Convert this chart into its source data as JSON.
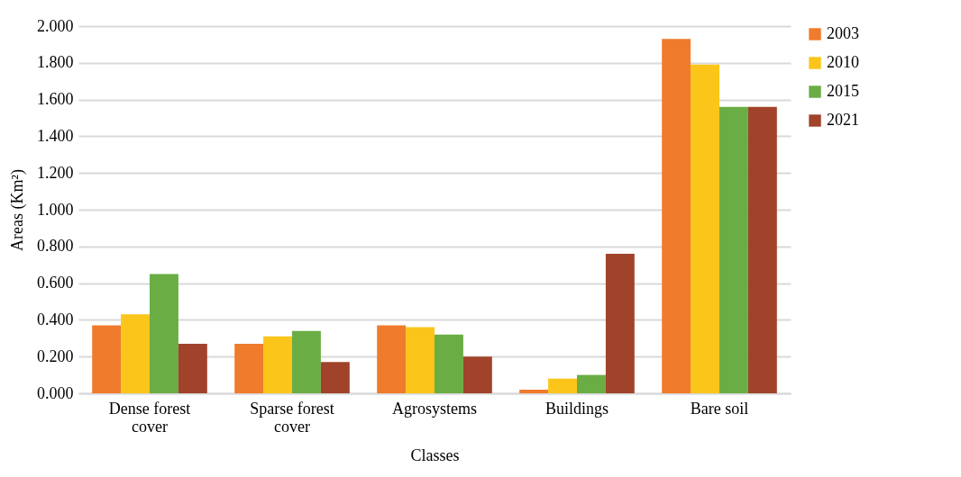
{
  "chart_data": {
    "type": "bar",
    "xlabel": "Classes",
    "ylabel": "Areas  (Km²)",
    "categories": [
      "Dense forest cover",
      "Sparse forest cover",
      "Agrosystems",
      "Buildings",
      "Bare soil"
    ],
    "series": [
      {
        "name": "2003",
        "color": "#f07b2c",
        "values": [
          0.37,
          0.27,
          0.37,
          0.02,
          1.93
        ]
      },
      {
        "name": "2010",
        "color": "#fcc51a",
        "values": [
          0.43,
          0.31,
          0.36,
          0.08,
          1.79
        ]
      },
      {
        "name": "2015",
        "color": "#6aad45",
        "values": [
          0.65,
          0.34,
          0.32,
          0.1,
          1.56
        ]
      },
      {
        "name": "2021",
        "color": "#a0432a",
        "values": [
          0.27,
          0.17,
          0.2,
          0.76,
          1.56
        ]
      }
    ],
    "ylim": [
      0,
      2
    ],
    "yticks": [
      {
        "value": 0,
        "label": "0.000"
      },
      {
        "value": 0.2,
        "label": "0.200"
      },
      {
        "value": 0.4,
        "label": "0.400"
      },
      {
        "value": 0.6,
        "label": "0.600"
      },
      {
        "value": 0.8,
        "label": "0.800"
      },
      {
        "value": 1,
        "label": "1.000"
      },
      {
        "value": 1.2,
        "label": "1.200"
      },
      {
        "value": 1.4,
        "label": "1.400"
      },
      {
        "value": 1.6,
        "label": "1.600"
      },
      {
        "value": 1.8,
        "label": "1.800"
      },
      {
        "value": 2,
        "label": "2.000"
      }
    ],
    "grid": "y",
    "legend": "right"
  }
}
